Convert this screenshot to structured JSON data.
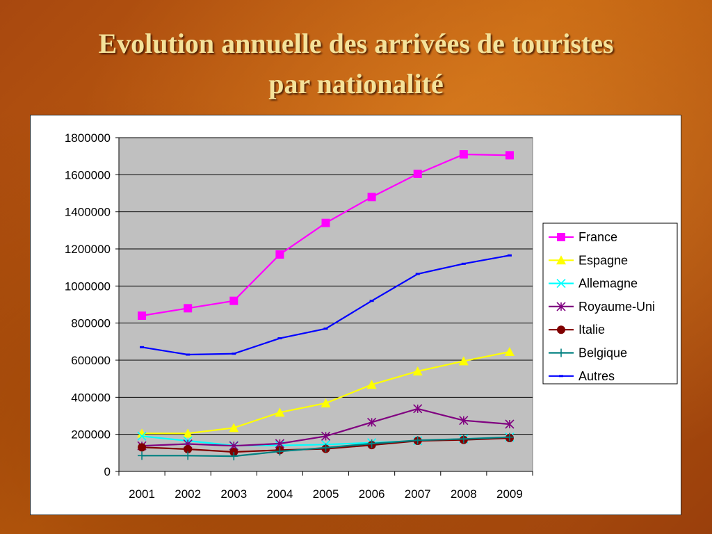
{
  "slide": {
    "title_line1": "Evolution annuelle des arrivées de touristes",
    "title_line2": "par nationalité"
  },
  "chart_data": {
    "type": "line",
    "title": "",
    "xlabel": "",
    "ylabel": "",
    "x": [
      "2001",
      "2002",
      "2003",
      "2004",
      "2005",
      "2006",
      "2007",
      "2008",
      "2009"
    ],
    "ylim": [
      0,
      1800000
    ],
    "yticks": [
      0,
      200000,
      400000,
      600000,
      800000,
      1000000,
      1200000,
      1400000,
      1600000,
      1800000
    ],
    "grid": true,
    "plot_background": "#c0c0c0",
    "legend_position": "right",
    "series": [
      {
        "name": "France",
        "color": "#ff00ff",
        "marker": "square",
        "values": [
          840000,
          880000,
          920000,
          1170000,
          1340000,
          1480000,
          1605000,
          1710000,
          1705000
        ]
      },
      {
        "name": "Espagne",
        "color": "#ffff00",
        "marker": "triangle",
        "values": [
          205000,
          205000,
          235000,
          318000,
          368000,
          468000,
          540000,
          595000,
          645000
        ]
      },
      {
        "name": "Allemagne",
        "color": "#00ffff",
        "marker": "x",
        "values": [
          190000,
          165000,
          140000,
          140000,
          145000,
          155000,
          165000,
          175000,
          185000
        ]
      },
      {
        "name": "Royaume-Uni",
        "color": "#800080",
        "marker": "star",
        "values": [
          138000,
          148000,
          138000,
          150000,
          190000,
          265000,
          338000,
          275000,
          255000
        ]
      },
      {
        "name": "Italie",
        "color": "#800000",
        "marker": "circle",
        "values": [
          130000,
          120000,
          105000,
          115000,
          122000,
          142000,
          165000,
          170000,
          180000
        ]
      },
      {
        "name": "Belgique",
        "color": "#008080",
        "marker": "plus",
        "values": [
          85000,
          85000,
          82000,
          108000,
          128000,
          150000,
          168000,
          175000,
          185000
        ]
      },
      {
        "name": "Autres",
        "color": "#0000ff",
        "marker": "dash",
        "values": [
          670000,
          630000,
          635000,
          718000,
          770000,
          920000,
          1065000,
          1120000,
          1165000
        ]
      }
    ]
  }
}
